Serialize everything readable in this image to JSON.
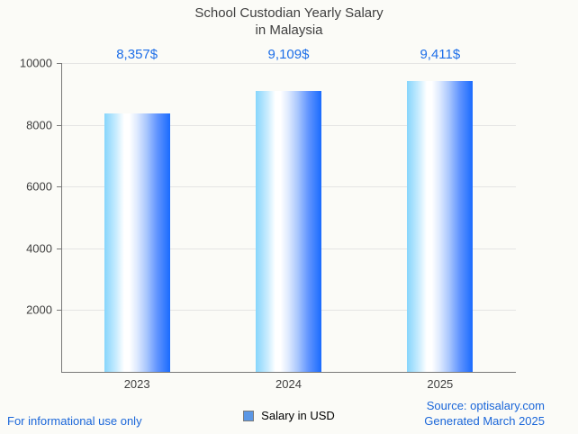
{
  "title": "School Custodian Yearly Salary\nin Malaysia",
  "chart_data": {
    "type": "bar",
    "title": "School Custodian Yearly Salary in Malaysia",
    "categories": [
      "2023",
      "2024",
      "2025"
    ],
    "values": [
      8357,
      9109,
      9411
    ],
    "value_labels": [
      "8,357$",
      "9,109$",
      "9,411$"
    ],
    "series_name": "Salary in USD",
    "xlabel": "",
    "ylabel": "",
    "ylim": [
      0,
      10000
    ],
    "yticks": [
      2000,
      4000,
      6000,
      8000,
      10000
    ],
    "grid": true,
    "legend_position": "bottom",
    "bar_color_gradient": [
      "#86d5fc",
      "#ffffff",
      "#1a6bfe"
    ],
    "value_label_color": "#1e6fe8"
  },
  "legend": {
    "swatch_icon": "blue-square-icon",
    "swatch_color": "#5b97e5",
    "label": "Salary in USD"
  },
  "footer": {
    "left_note": "For informational use only",
    "source": "Source: optisalary.com",
    "generated": "Generated March 2025"
  },
  "colors": {
    "background": "#fbfbf7",
    "title_text": "#3f3f3f",
    "axis": "#787878",
    "gridline": "#e4e4e4",
    "blue_text": "#1a66d9"
  }
}
